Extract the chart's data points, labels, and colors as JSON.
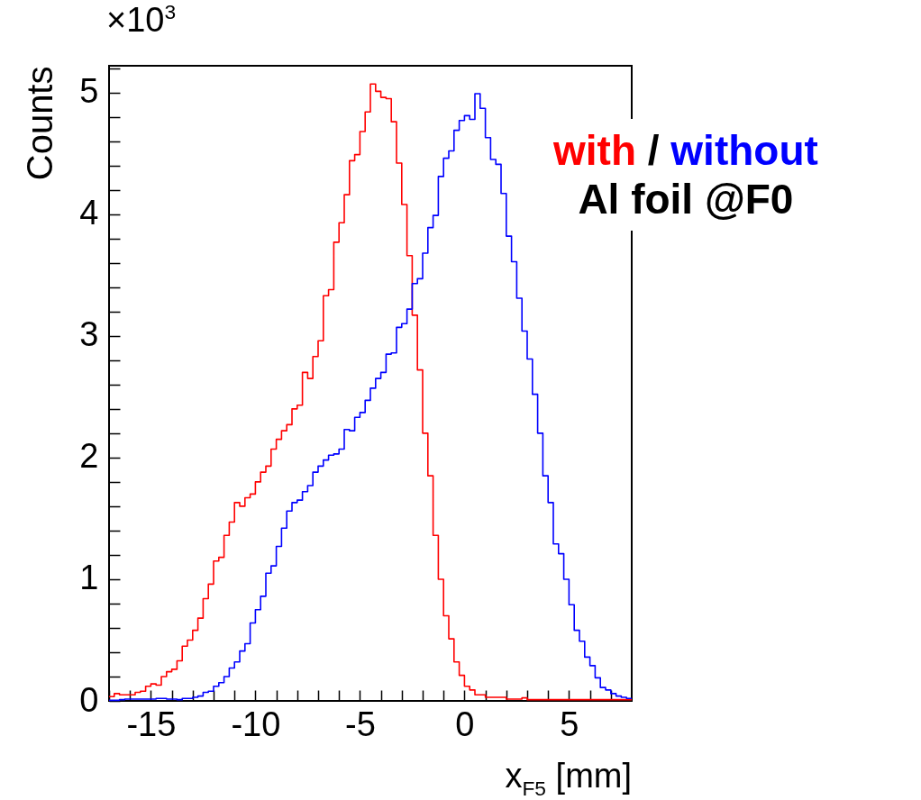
{
  "chart_data": {
    "type": "histogram",
    "xlabel": "x$_{F5}$ [mm]",
    "ylabel": "Counts",
    "annotations": [
      "×10$^{3}$",
      "/",
      "Al foil @F0"
    ],
    "bins": [
      -17,
      -16.75,
      -16.5,
      -16.25,
      -16,
      -15.75,
      -15.5,
      -15.25,
      -15,
      -14.75,
      -14.5,
      -14.25,
      -14,
      -13.75,
      -13.5,
      -13.25,
      -13,
      -12.75,
      -12.5,
      -12.25,
      -12,
      -11.75,
      -11.5,
      -11.25,
      -11,
      -10.75,
      -10.5,
      -10.25,
      -10,
      -9.75,
      -9.5,
      -9.25,
      -9,
      -8.75,
      -8.5,
      -8.25,
      -8,
      -7.75,
      -7.5,
      -7.25,
      -7,
      -6.75,
      -6.5,
      -6.25,
      -6,
      -5.75,
      -5.5,
      -5.25,
      -5,
      -4.75,
      -4.5,
      -4.25,
      -4,
      -3.75,
      -3.5,
      -3.25,
      -3,
      -2.75,
      -2.5,
      -2.25,
      -2,
      -1.75,
      -1.5,
      -1.25,
      -1,
      -0.75,
      -0.5,
      -0.25,
      0,
      0.25,
      0.5,
      0.75,
      1,
      1.25,
      1.5,
      1.75,
      2,
      2.25,
      2.5,
      2.75,
      3,
      3.25,
      3.5,
      3.75,
      4,
      4.25,
      4.5,
      4.75,
      5,
      5.25,
      5.5,
      5.75,
      6,
      6.25,
      6.5,
      6.75,
      7,
      7.25,
      7.5,
      7.75,
      8
    ],
    "series": [
      {
        "name": "with",
        "color": "#ff0000",
        "values": [
          0.035,
          0.06,
          0.05,
          0.05,
          0.05,
          0.07,
          0.08,
          0.12,
          0.14,
          0.13,
          0.2,
          0.24,
          0.26,
          0.33,
          0.45,
          0.5,
          0.58,
          0.68,
          0.84,
          0.96,
          1.15,
          1.18,
          1.36,
          1.47,
          1.63,
          1.6,
          1.67,
          1.7,
          1.8,
          1.88,
          1.93,
          2.07,
          2.15,
          2.22,
          2.27,
          2.4,
          2.43,
          2.7,
          2.65,
          2.83,
          2.96,
          3.33,
          3.38,
          3.77,
          3.93,
          4.16,
          4.44,
          4.49,
          4.68,
          4.84,
          5.07,
          5.01,
          4.96,
          4.95,
          4.76,
          4.42,
          4.08,
          3.66,
          3.17,
          2.72,
          2.2,
          1.85,
          1.36,
          1.0,
          0.7,
          0.51,
          0.32,
          0.21,
          0.12,
          0.09,
          0.05,
          0.05,
          0.03,
          0.03,
          0.03,
          0.03,
          0.015,
          0.015,
          0.015,
          0.025,
          0.01,
          0.01,
          0.01,
          0.01,
          0.01,
          0.01,
          0.01,
          0.01,
          0.01,
          0.01,
          0.01,
          0.01,
          0.01,
          0.01,
          0.01,
          0.01,
          0.01,
          0.01,
          0.01,
          0.01
        ]
      },
      {
        "name": "without",
        "color": "#0000ff",
        "values": [
          0.005,
          0.005,
          0.01,
          0.015,
          0.015,
          0.015,
          0.015,
          0.015,
          0.015,
          0.02,
          0.02,
          0.015,
          0.015,
          0.01,
          0.02,
          0.02,
          0.03,
          0.04,
          0.07,
          0.08,
          0.12,
          0.15,
          0.2,
          0.27,
          0.32,
          0.41,
          0.47,
          0.64,
          0.75,
          0.86,
          1.05,
          1.11,
          1.27,
          1.42,
          1.56,
          1.63,
          1.65,
          1.72,
          1.77,
          1.88,
          1.93,
          1.98,
          2.02,
          2.03,
          2.07,
          2.23,
          2.22,
          2.33,
          2.37,
          2.47,
          2.57,
          2.65,
          2.7,
          2.85,
          2.86,
          3.07,
          3.1,
          3.22,
          3.43,
          3.47,
          3.68,
          3.89,
          3.99,
          4.31,
          4.46,
          4.52,
          4.69,
          4.77,
          4.81,
          4.78,
          4.99,
          4.87,
          4.63,
          4.45,
          4.41,
          4.17,
          3.82,
          3.61,
          3.31,
          3.04,
          2.81,
          2.52,
          2.2,
          1.85,
          1.63,
          1.29,
          1.21,
          1.0,
          0.79,
          0.58,
          0.49,
          0.36,
          0.29,
          0.19,
          0.11,
          0.09,
          0.06,
          0.04,
          0.03,
          0.02
        ]
      }
    ],
    "xlim": [
      -17,
      8
    ],
    "xticks": [
      {
        "value": -17,
        "label": null
      },
      {
        "value": -16,
        "label": null
      },
      -15,
      {
        "value": -14,
        "label": null
      },
      {
        "value": -13,
        "label": null
      },
      {
        "value": -12,
        "label": null
      },
      {
        "value": -11,
        "label": null
      },
      -10,
      {
        "value": -9,
        "label": null
      },
      {
        "value": -8,
        "label": null
      },
      {
        "value": -7,
        "label": null
      },
      {
        "value": -6,
        "label": null
      },
      -5,
      {
        "value": -4,
        "label": null
      },
      {
        "value": -3,
        "label": null
      },
      {
        "value": -2,
        "label": null
      },
      {
        "value": -1,
        "label": null
      },
      0,
      {
        "value": 1,
        "label": null
      },
      {
        "value": 2,
        "label": null
      },
      {
        "value": 3,
        "label": null
      },
      {
        "value": 4,
        "label": null
      },
      5,
      {
        "value": 6,
        "label": null
      },
      {
        "value": 7,
        "label": null
      }
    ],
    "ylim": [
      0,
      5.22
    ],
    "yticks": [
      0,
      {
        "value": 0.2,
        "label": null
      },
      {
        "value": 0.4,
        "label": null
      },
      {
        "value": 0.6,
        "label": null
      },
      {
        "value": 0.8,
        "label": null
      },
      1,
      {
        "value": 1.2,
        "label": null
      },
      {
        "value": 1.4,
        "label": null
      },
      {
        "value": 1.6,
        "label": null
      },
      {
        "value": 1.8,
        "label": null
      },
      2,
      {
        "value": 2.2,
        "label": null
      },
      {
        "value": 2.4,
        "label": null
      },
      {
        "value": 2.6,
        "label": null
      },
      {
        "value": 2.8,
        "label": null
      },
      3,
      {
        "value": 3.2,
        "label": null
      },
      {
        "value": 3.4,
        "label": null
      },
      {
        "value": 3.6,
        "label": null
      },
      {
        "value": 3.8,
        "label": null
      },
      4,
      {
        "value": 4.2,
        "label": null
      },
      {
        "value": 4.4,
        "label": null
      },
      {
        "value": 4.6,
        "label": null
      },
      {
        "value": 4.8,
        "label": null
      },
      5,
      {
        "value": 5.2,
        "label": null
      }
    ]
  }
}
